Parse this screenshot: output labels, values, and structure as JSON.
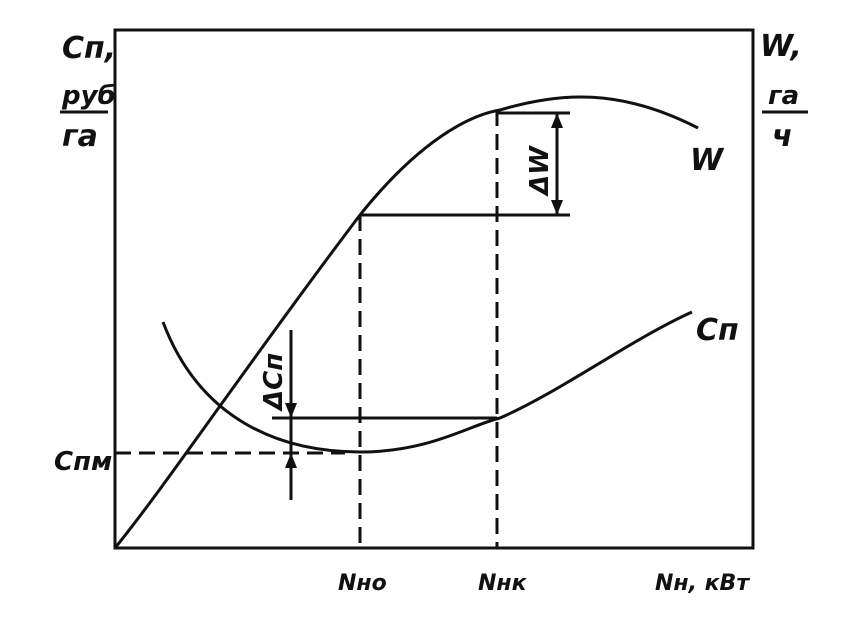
{
  "chart_data": {
    "type": "line",
    "title": "",
    "x_axis_label": "Nн, кВт",
    "y_axis_left_label": {
      "symbol": "Cп,",
      "unit_num": "руб",
      "unit_den": "га"
    },
    "y_axis_right_label": {
      "symbol": "W,",
      "unit_num": "га",
      "unit_den": "ч"
    },
    "x_ticks": [
      "Nно",
      "Nнк"
    ],
    "y_ticks_left": [
      "Cпм"
    ],
    "series": [
      {
        "name": "W",
        "values_description": "rises from origin, peaks after Nнк"
      },
      {
        "name": "Cп",
        "values_description": "U-shaped, minimum at Nно"
      }
    ],
    "annotations": {
      "delta_w": "ΔW",
      "delta_c": "ΔCп"
    },
    "grid": false,
    "colors": {
      "ink": "#111111",
      "background": "#ffffff"
    }
  }
}
